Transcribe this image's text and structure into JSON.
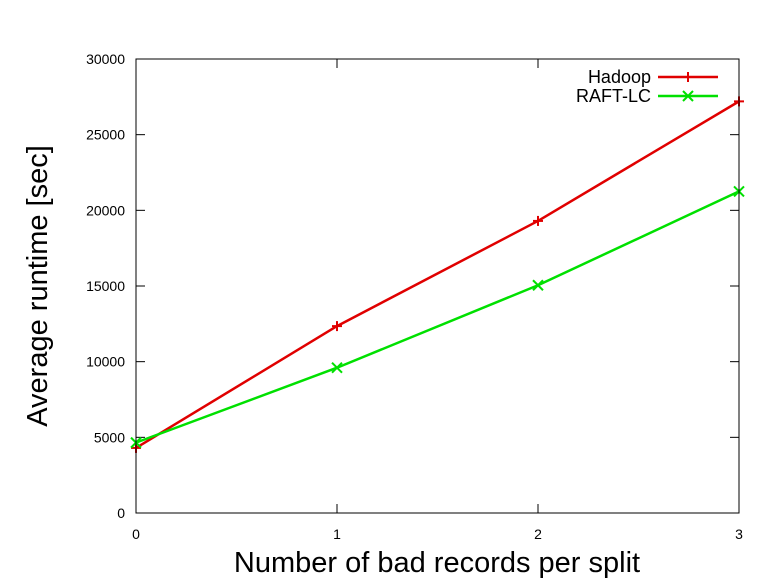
{
  "chart_data": {
    "type": "line",
    "xlabel": "Number of bad records per split",
    "ylabel": "Average runtime [sec]",
    "x": [
      0,
      1,
      2,
      3
    ],
    "xlim": [
      0,
      3
    ],
    "ylim": [
      0,
      30000
    ],
    "xticks": [
      "0",
      "1",
      "2",
      "3"
    ],
    "yticks": [
      "0",
      "5000",
      "10000",
      "15000",
      "20000",
      "25000",
      "30000"
    ],
    "grid": false,
    "legend_position": "top-right",
    "series": [
      {
        "name": "Hadoop",
        "marker": "plus",
        "color": "#e00000",
        "values": [
          4300,
          12350,
          19300,
          27200
        ]
      },
      {
        "name": "RAFT-LC",
        "marker": "cross",
        "color": "#00e000",
        "values": [
          4650,
          9600,
          15050,
          21250
        ]
      }
    ]
  }
}
